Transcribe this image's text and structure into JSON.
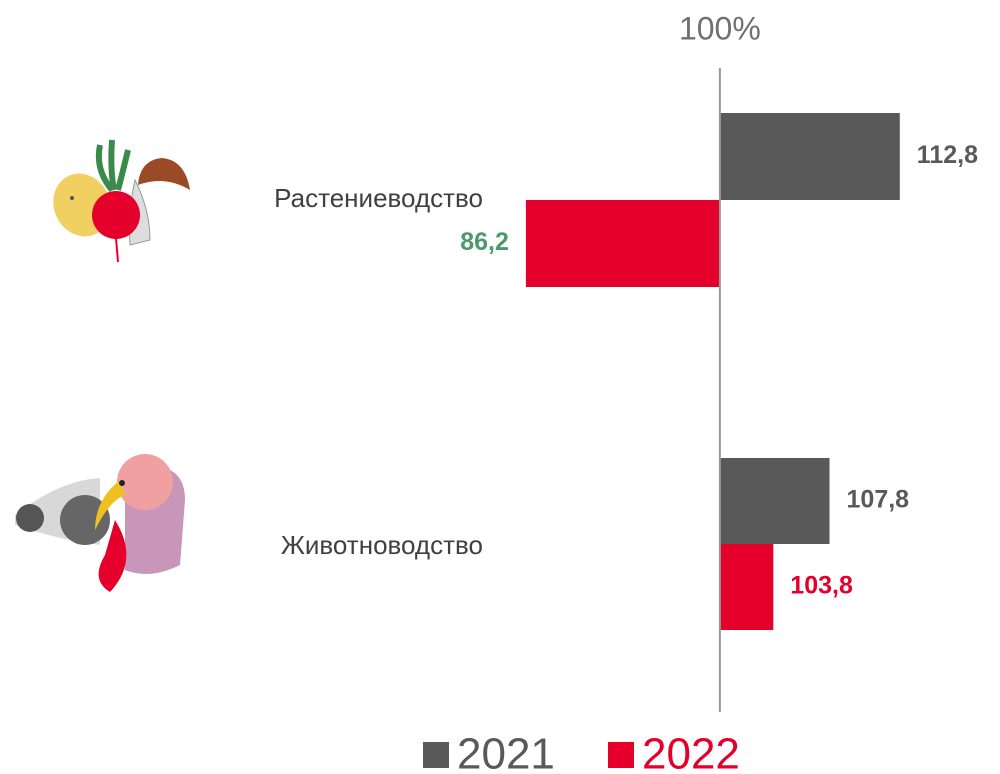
{
  "chart_data": {
    "type": "bar",
    "orientation": "horizontal",
    "categories": [
      "Растениеводство",
      "Животноводство"
    ],
    "series": [
      {
        "name": "2021",
        "color": "#595959",
        "values": [
          112.8,
          107.8
        ],
        "value_labels": [
          "112,8",
          "107,8"
        ],
        "value_label_colors": [
          "#595959",
          "#595959"
        ]
      },
      {
        "name": "2022",
        "color": "#e4002b",
        "values": [
          86.2,
          103.8
        ],
        "value_labels": [
          "86,2",
          "103,8"
        ],
        "value_label_colors": [
          "#4a9a6a",
          "#e4002b"
        ]
      }
    ],
    "xlim": [
      75,
      120
    ],
    "reference_line": {
      "value": 100,
      "label": "100%"
    },
    "legend": "bottom"
  }
}
